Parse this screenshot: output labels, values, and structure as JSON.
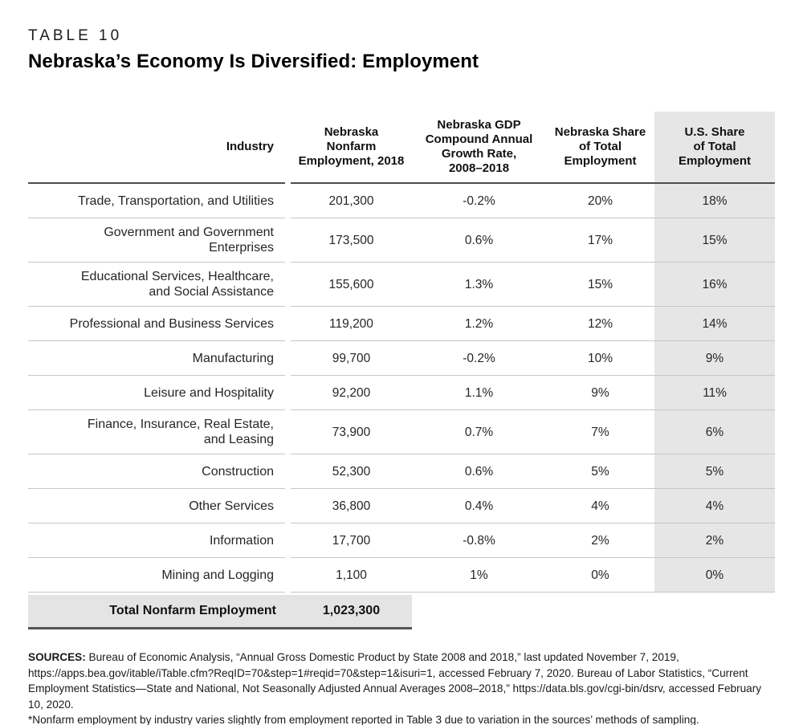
{
  "page": {
    "kicker": "TABLE 10",
    "title": "Nebraska’s Economy Is Diversified: Employment"
  },
  "table": {
    "headers": {
      "industry": "Industry",
      "employment": "Nebraska\nNonfarm\nEmployment, 2018",
      "growth": "Nebraska GDP\nCompound Annual\nGrowth Rate,\n2008–2018",
      "ne_share": "Nebraska Share\nof Total\nEmployment",
      "us_share": "U.S. Share\nof Total\nEmployment"
    },
    "rows": [
      {
        "industry": "Trade, Transportation, and Utilities",
        "employment": "201,300",
        "growth": "-0.2%",
        "ne_share": "20%",
        "us_share": "18%"
      },
      {
        "industry": "Government and Government\nEnterprises",
        "employment": "173,500",
        "growth": "0.6%",
        "ne_share": "17%",
        "us_share": "15%"
      },
      {
        "industry": "Educational Services, Healthcare,\nand Social Assistance",
        "employment": "155,600",
        "growth": "1.3%",
        "ne_share": "15%",
        "us_share": "16%"
      },
      {
        "industry": "Professional and Business Services",
        "employment": "119,200",
        "growth": "1.2%",
        "ne_share": "12%",
        "us_share": "14%"
      },
      {
        "industry": "Manufacturing",
        "employment": "99,700",
        "growth": "-0.2%",
        "ne_share": "10%",
        "us_share": "9%"
      },
      {
        "industry": "Leisure and Hospitality",
        "employment": "92,200",
        "growth": "1.1%",
        "ne_share": "9%",
        "us_share": "11%"
      },
      {
        "industry": "Finance, Insurance, Real Estate,\nand Leasing",
        "employment": "73,900",
        "growth": "0.7%",
        "ne_share": "7%",
        "us_share": "6%"
      },
      {
        "industry": "Construction",
        "employment": "52,300",
        "growth": "0.6%",
        "ne_share": "5%",
        "us_share": "5%"
      },
      {
        "industry": "Other Services",
        "employment": "36,800",
        "growth": "0.4%",
        "ne_share": "4%",
        "us_share": "4%"
      },
      {
        "industry": "Information",
        "employment": "17,700",
        "growth": "-0.8%",
        "ne_share": "2%",
        "us_share": "2%"
      },
      {
        "industry": "Mining and Logging",
        "employment": "1,100",
        "growth": "1%",
        "ne_share": "0%",
        "us_share": "0%"
      }
    ],
    "total": {
      "label": "Total Nonfarm Employment",
      "value": "1,023,300"
    }
  },
  "footer": {
    "sources_label": "SOURCES:",
    "sources_text": " Bureau of Economic Analysis, “Annual Gross Domestic Product by State 2008 and 2018,” last updated November 7, 2019, https://apps.bea.gov/itable/iTable.cfm?ReqID=70&step=1#reqid=70&step=1&isuri=1, accessed February 7, 2020. Bureau of Labor Statistics, “Current Employment Statistics—State and National, Not Seasonally Adjusted Annual Averages 2008–2018,” https://data.bls.gov/cgi-bin/dsrv, accessed February 10, 2020.",
    "footnote": "*Nonfarm employment by industry varies slightly from employment reported in Table 3 due to variation in the sources’ methods of sampling."
  },
  "colors": {
    "highlight_column_bg": "#e6e6e6",
    "total_row_bg": "#e4e4e4",
    "rule_dark": "#4d4d4d",
    "rule_light": "#c6c6c6"
  }
}
